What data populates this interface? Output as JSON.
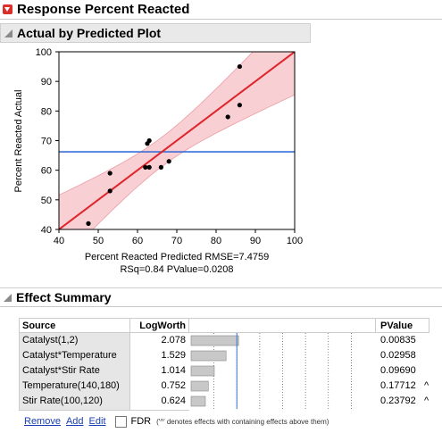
{
  "report": {
    "title": "Response Percent Reacted",
    "plot_section_title": "Actual by Predicted Plot",
    "effect_section_title": "Effect Summary"
  },
  "plot": {
    "ylabel": "Percent Reacted Actual",
    "xlabel": "Percent Reacted Predicted RMSE=7.4759",
    "stats": "RSq=0.84 PValue=0.0208"
  },
  "chart_data": {
    "type": "scatter",
    "title": "",
    "xlabel": "Percent Reacted Predicted RMSE=7.4759",
    "ylabel": "Percent Reacted Actual",
    "xlim": [
      40,
      100
    ],
    "ylim": [
      40,
      100
    ],
    "xticks": [
      40,
      50,
      60,
      70,
      80,
      90,
      100
    ],
    "yticks": [
      40,
      50,
      60,
      70,
      80,
      90,
      100
    ],
    "points": [
      {
        "x": 47.5,
        "y": 42
      },
      {
        "x": 53,
        "y": 53
      },
      {
        "x": 53,
        "y": 59
      },
      {
        "x": 62,
        "y": 61
      },
      {
        "x": 63,
        "y": 61
      },
      {
        "x": 62.5,
        "y": 69
      },
      {
        "x": 63,
        "y": 70
      },
      {
        "x": 66,
        "y": 61
      },
      {
        "x": 68,
        "y": 63
      },
      {
        "x": 83,
        "y": 78
      },
      {
        "x": 86,
        "y": 82
      },
      {
        "x": 86,
        "y": 95
      }
    ],
    "fit_line": {
      "x0": 40,
      "y0": 40,
      "x1": 100,
      "y1": 100,
      "color": "#e0222b"
    },
    "mean_line": {
      "y": 66.2,
      "color": "#3a6fd8"
    },
    "confidence_band_color": "#f7c7cc",
    "grid": false
  },
  "effect_summary": {
    "headers": {
      "source": "Source",
      "logworth": "LogWorth",
      "pvalue": "PValue"
    },
    "rows": [
      {
        "source": "Catalyst(1,2)",
        "logworth": "2.078",
        "logworth_value": 2.078,
        "pvalue": "0.00835",
        "mark": ""
      },
      {
        "source": "Catalyst*Temperature",
        "logworth": "1.529",
        "logworth_value": 1.529,
        "pvalue": "0.02958",
        "mark": ""
      },
      {
        "source": "Catalyst*Stir Rate",
        "logworth": "1.014",
        "logworth_value": 1.014,
        "pvalue": "0.09690",
        "mark": ""
      },
      {
        "source": "Temperature(140,180)",
        "logworth": "0.752",
        "logworth_value": 0.752,
        "pvalue": "0.17712",
        "mark": "^"
      },
      {
        "source": "Stir Rate(100,120)",
        "logworth": "0.624",
        "logworth_value": 0.624,
        "pvalue": "0.23792",
        "mark": "^"
      }
    ],
    "bar_scale_max": 8,
    "reference_line_value": 2
  },
  "footer": {
    "remove": "Remove",
    "add": "Add",
    "edit": "Edit",
    "fdr": "FDR",
    "note": "('^' denotes effects with containing effects above them)"
  },
  "colors": {
    "accent_red": "#d9302c",
    "link_blue": "#1a3fb0",
    "bar_gray": "#c8c8c8"
  }
}
